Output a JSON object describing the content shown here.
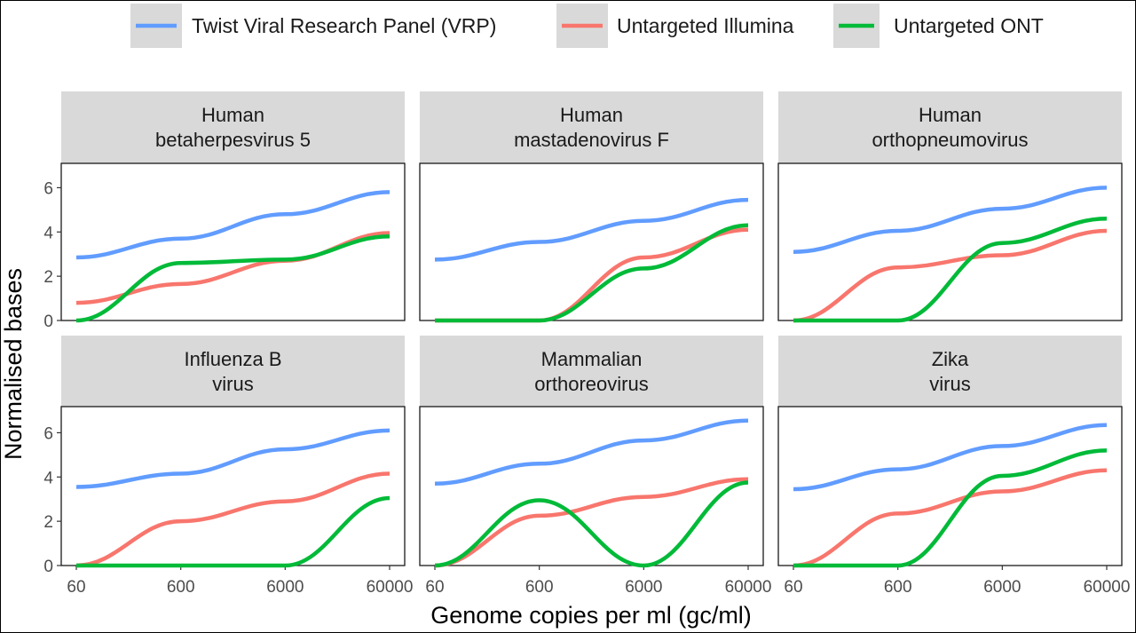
{
  "chart_data": {
    "type": "line",
    "xlabel": "Genome copies per ml (gc/ml)",
    "ylabel": "Normalised bases",
    "x": [
      60,
      600,
      6000,
      60000
    ],
    "x_tick_labels": [
      "60",
      "600",
      "6000",
      "60000"
    ],
    "x_scale": "log",
    "ylim": [
      0,
      7
    ],
    "y_ticks": [
      0,
      2,
      4,
      6
    ],
    "legend_position": "top",
    "legend": [
      {
        "key": "vrp",
        "name": "Twist Viral Research Panel (VRP)",
        "color": "#619CFF"
      },
      {
        "key": "ill",
        "name": "Untargeted Illumina",
        "color": "#F8766D"
      },
      {
        "key": "ont",
        "name": "Untargeted ONT",
        "color": "#00BA38"
      }
    ],
    "panels": [
      {
        "title": [
          "Human",
          "betaherpesvirus 5"
        ],
        "series": {
          "vrp": [
            2.85,
            3.7,
            4.8,
            5.8
          ],
          "ill": [
            0.8,
            1.65,
            2.7,
            3.95
          ],
          "ont": [
            0.0,
            2.6,
            2.75,
            3.8
          ]
        }
      },
      {
        "title": [
          "Human",
          "mastadenovirus F"
        ],
        "series": {
          "vrp": [
            2.75,
            3.55,
            4.5,
            5.45
          ],
          "ill": [
            0.0,
            0.0,
            2.85,
            4.1
          ],
          "ont": [
            0.0,
            0.0,
            2.35,
            4.3
          ]
        }
      },
      {
        "title": [
          "Human",
          "orthopneumovirus"
        ],
        "series": {
          "vrp": [
            3.1,
            4.05,
            5.05,
            6.0
          ],
          "ill": [
            0.0,
            2.4,
            2.95,
            4.05
          ],
          "ont": [
            0.0,
            0.0,
            3.5,
            4.6
          ]
        }
      },
      {
        "title": [
          "Influenza B",
          "virus"
        ],
        "series": {
          "vrp": [
            3.55,
            4.15,
            5.25,
            6.1
          ],
          "ill": [
            0.0,
            2.0,
            2.9,
            4.15
          ],
          "ont": [
            0.0,
            0.0,
            0.0,
            3.05
          ]
        }
      },
      {
        "title": [
          "Mammalian",
          "orthoreovirus"
        ],
        "series": {
          "vrp": [
            3.7,
            4.6,
            5.65,
            6.55
          ],
          "ill": [
            0.0,
            2.25,
            3.1,
            3.9
          ],
          "ont": [
            0.0,
            2.95,
            0.0,
            3.75
          ]
        }
      },
      {
        "title": [
          "Zika",
          "virus"
        ],
        "series": {
          "vrp": [
            3.45,
            4.35,
            5.4,
            6.35
          ],
          "ill": [
            0.0,
            2.35,
            3.35,
            4.3
          ],
          "ont": [
            0.0,
            0.0,
            4.05,
            5.2
          ]
        }
      }
    ]
  }
}
